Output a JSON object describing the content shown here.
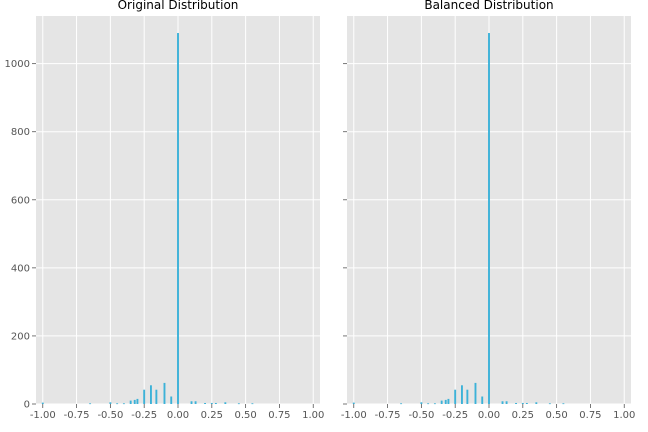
{
  "chart_data": [
    {
      "type": "bar",
      "title": "Original Distribution",
      "xlim": [
        -1.05,
        1.05
      ],
      "ylim": [
        0,
        1140
      ],
      "x_ticks": [
        -1.0,
        -0.75,
        -0.5,
        -0.25,
        0.0,
        0.25,
        0.5,
        0.75,
        1.0
      ],
      "x_tick_labels": [
        "-1.00",
        "-0.75",
        "-0.50",
        "-0.25",
        "0.00",
        "0.25",
        "0.50",
        "0.75",
        "1.00"
      ],
      "y_ticks": [
        0,
        200,
        400,
        600,
        800,
        1000
      ],
      "y_tick_labels": [
        "0",
        "200",
        "400",
        "600",
        "800",
        "1000"
      ],
      "grid": true,
      "bar_width": 0.014,
      "x": [
        -1.0,
        -0.65,
        -0.5,
        -0.45,
        -0.4,
        -0.35,
        -0.32,
        -0.3,
        -0.25,
        -0.2,
        -0.16,
        -0.1,
        -0.05,
        0.0,
        0.1,
        0.13,
        0.2,
        0.25,
        0.28,
        0.35,
        0.45,
        0.55
      ],
      "values": [
        4,
        2,
        5,
        2,
        2,
        10,
        12,
        15,
        42,
        55,
        42,
        62,
        22,
        1090,
        8,
        8,
        3,
        3,
        3,
        5,
        2,
        2
      ]
    },
    {
      "type": "bar",
      "title": "Balanced Distribution",
      "xlim": [
        -1.05,
        1.05
      ],
      "ylim": [
        0,
        1140
      ],
      "x_ticks": [
        -1.0,
        -0.75,
        -0.5,
        -0.25,
        0.0,
        0.25,
        0.5,
        0.75,
        1.0
      ],
      "x_tick_labels": [
        "-1.00",
        "-0.75",
        "-0.50",
        "-0.25",
        "0.00",
        "0.25",
        "0.50",
        "0.75",
        "1.00"
      ],
      "y_ticks": [
        0,
        200,
        400,
        600,
        800,
        1000
      ],
      "y_tick_labels": [],
      "grid": true,
      "bar_width": 0.014,
      "x": [
        -1.0,
        -0.65,
        -0.5,
        -0.45,
        -0.4,
        -0.35,
        -0.32,
        -0.3,
        -0.25,
        -0.2,
        -0.16,
        -0.1,
        -0.05,
        0.0,
        0.1,
        0.13,
        0.2,
        0.25,
        0.28,
        0.35,
        0.45,
        0.55
      ],
      "values": [
        4,
        2,
        5,
        2,
        2,
        10,
        12,
        15,
        42,
        55,
        42,
        62,
        22,
        1090,
        8,
        8,
        3,
        3,
        3,
        5,
        2,
        2
      ]
    }
  ],
  "colors": {
    "bar": "#3cb2d8",
    "panel_background": "#e5e5e5",
    "grid": "#ffffff"
  }
}
